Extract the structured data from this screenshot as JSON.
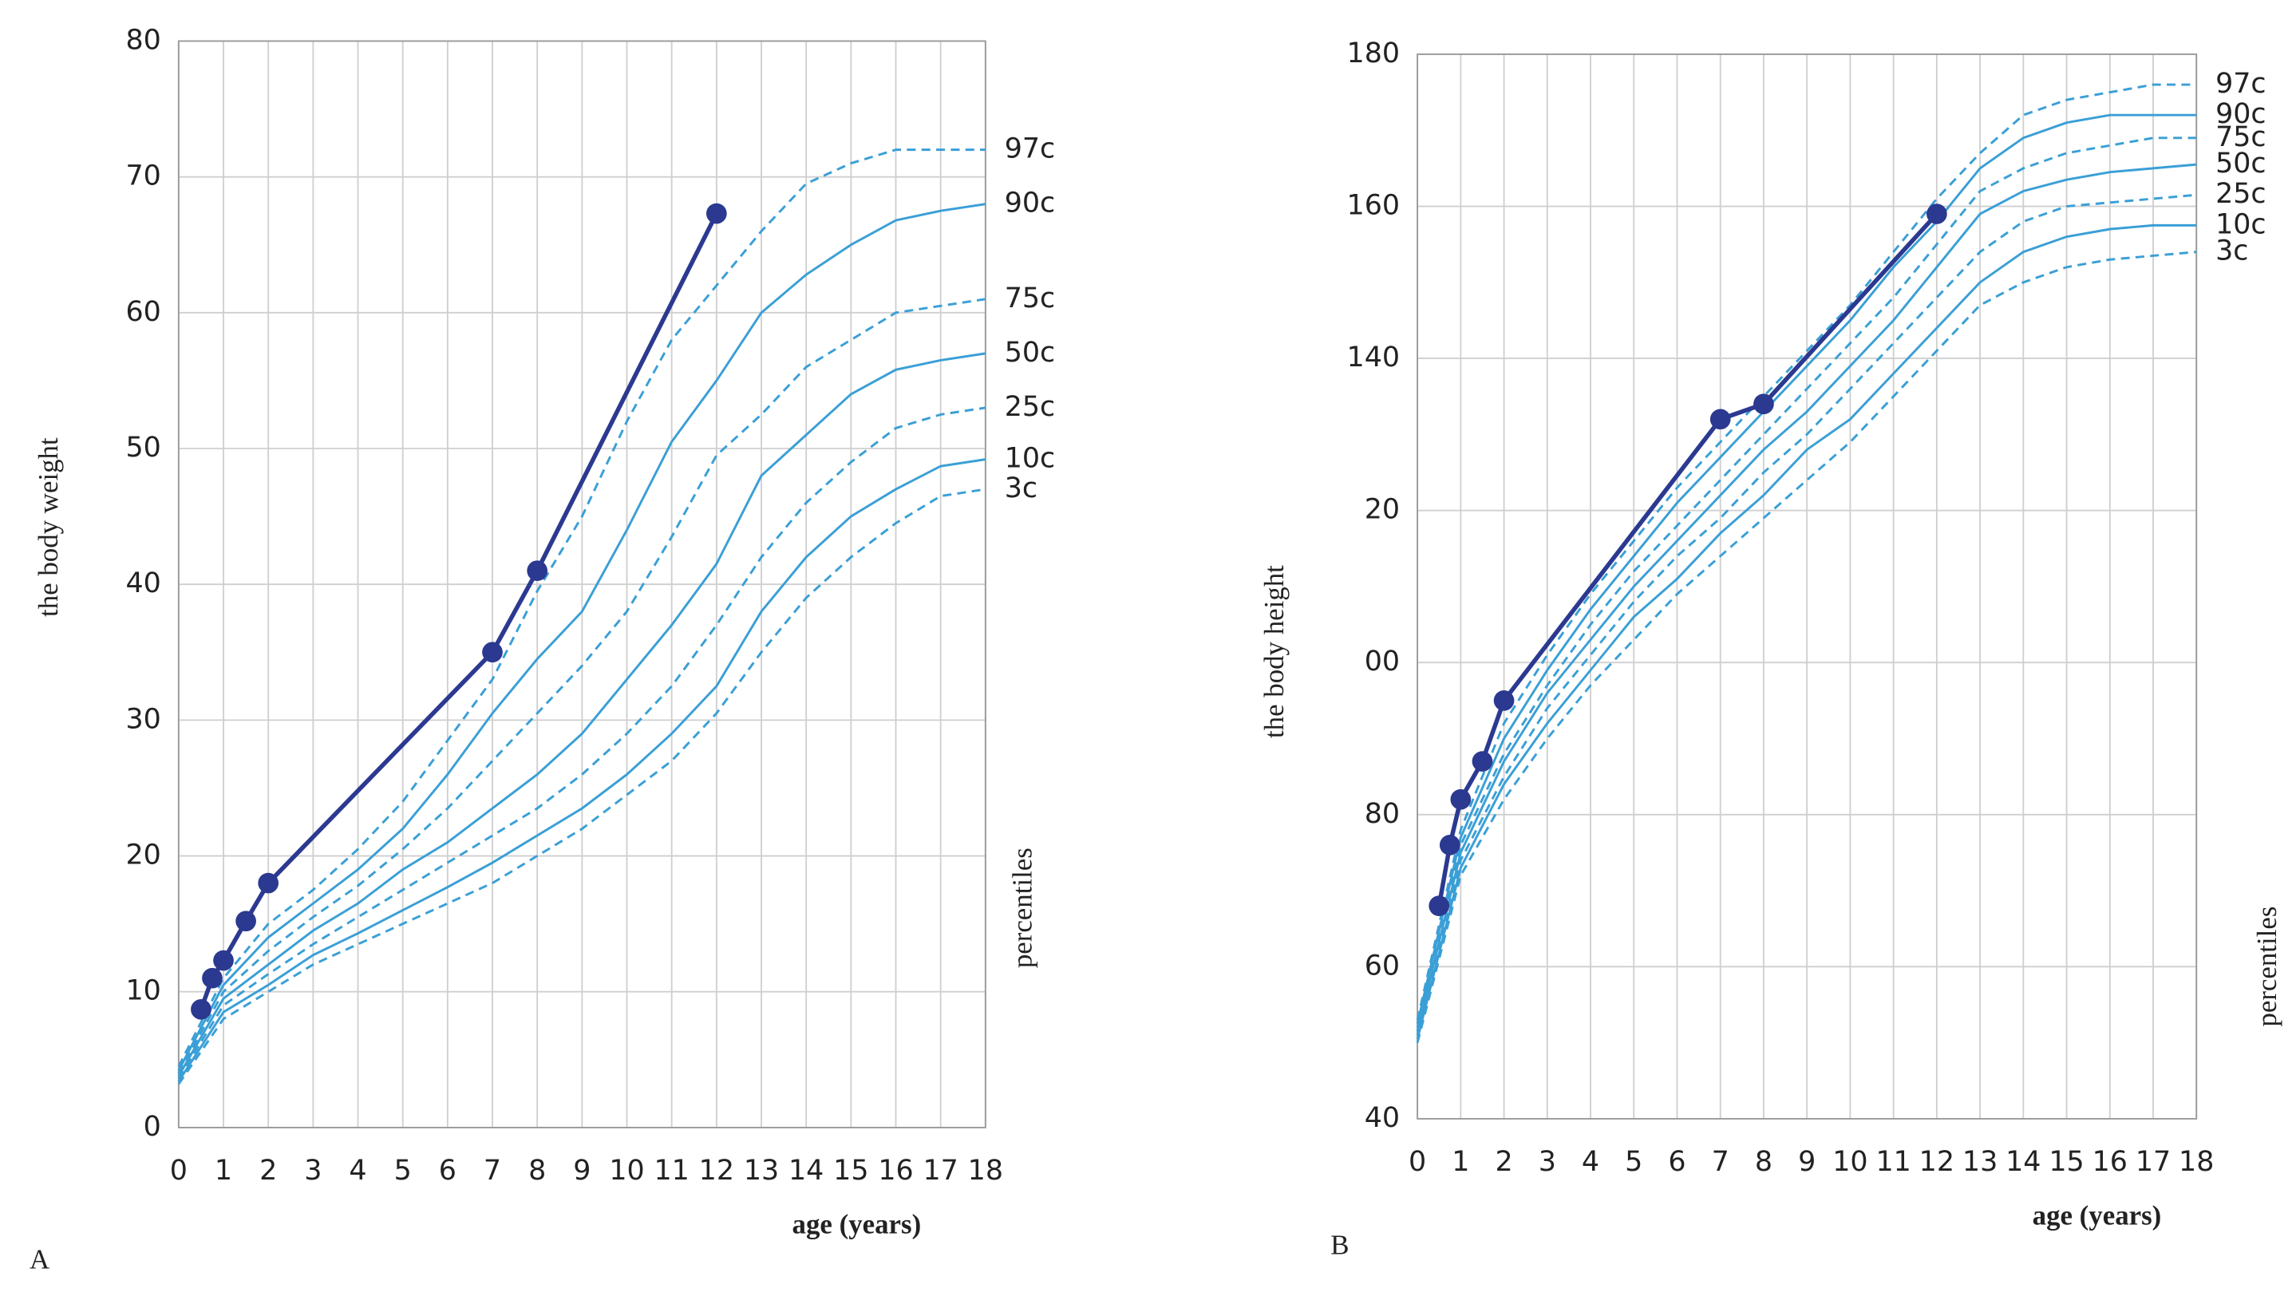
{
  "chart_data": [
    {
      "type": "line",
      "panel_label": "A",
      "x_label": "age (years)",
      "y_label": "the body weight",
      "annotation": "percentiles",
      "xlim": [
        0,
        18
      ],
      "xticks": [
        0,
        1,
        2,
        3,
        4,
        5,
        6,
        7,
        8,
        9,
        10,
        11,
        12,
        13,
        14,
        15,
        16,
        17,
        18
      ],
      "ylim": [
        0,
        80
      ],
      "yticks": [
        0,
        10,
        20,
        30,
        40,
        50,
        60,
        70,
        80
      ],
      "grid": true,
      "x": [
        0,
        1,
        2,
        3,
        4,
        5,
        6,
        7,
        8,
        9,
        10,
        11,
        12,
        13,
        14,
        15,
        16,
        17,
        18
      ],
      "series": [
        {
          "name": "97c",
          "color": "#3a9fd6",
          "dashed": true,
          "values": [
            4.5,
            11,
            15,
            17.5,
            20.5,
            24,
            28.5,
            33,
            39.5,
            45,
            52,
            58,
            62,
            66,
            69.5,
            71,
            72,
            72,
            72
          ]
        },
        {
          "name": "90c",
          "color": "#3a9fd6",
          "dashed": false,
          "values": [
            4.2,
            10.5,
            14,
            16.5,
            19,
            22,
            26,
            30.5,
            34.5,
            38,
            44,
            50.5,
            55,
            60,
            62.8,
            65,
            66.8,
            67.5,
            68
          ]
        },
        {
          "name": "75c",
          "color": "#3a9fd6",
          "dashed": true,
          "values": [
            4,
            10,
            13,
            15.5,
            17.8,
            20.5,
            23.5,
            27,
            30.5,
            34,
            38,
            43.5,
            49.5,
            52.5,
            56,
            58,
            60,
            60.5,
            61
          ]
        },
        {
          "name": "50c",
          "color": "#3a9fd6",
          "dashed": false,
          "values": [
            3.8,
            9.5,
            12,
            14.5,
            16.5,
            19,
            21,
            23.5,
            26,
            29,
            33,
            37,
            41.5,
            48,
            51,
            54,
            55.8,
            56.5,
            57
          ]
        },
        {
          "name": "25c",
          "color": "#3a9fd6",
          "dashed": true,
          "values": [
            3.6,
            9,
            11.3,
            13.5,
            15.5,
            17.5,
            19.5,
            21.5,
            23.5,
            26,
            29,
            32.5,
            37,
            42,
            46,
            49,
            51.5,
            52.5,
            53
          ]
        },
        {
          "name": "10c",
          "color": "#3a9fd6",
          "dashed": false,
          "values": [
            3.4,
            8.5,
            10.5,
            12.7,
            14.3,
            16,
            17.7,
            19.5,
            21.5,
            23.5,
            26,
            29,
            32.5,
            38,
            42,
            45,
            47,
            48.7,
            49.2
          ]
        },
        {
          "name": "3c",
          "color": "#3a9fd6",
          "dashed": true,
          "values": [
            3.2,
            8,
            10,
            12,
            13.5,
            15,
            16.5,
            18,
            20,
            22,
            24.5,
            27,
            30.5,
            35,
            39,
            42,
            44.5,
            46.5,
            47
          ]
        },
        {
          "color": "#2b3990",
          "markers": true,
          "x": [
            0.5,
            0.75,
            1,
            1.5,
            2,
            7,
            8,
            12
          ],
          "values": [
            8.7,
            11,
            12.3,
            15.2,
            18,
            35,
            41,
            67.3
          ]
        }
      ]
    },
    {
      "type": "line",
      "panel_label": "B",
      "x_label": "age (years)",
      "y_label": "the body height",
      "annotation": "percentiles",
      "xlim": [
        0,
        18
      ],
      "xticks": [
        0,
        1,
        2,
        3,
        4,
        5,
        6,
        7,
        8,
        9,
        10,
        11,
        12,
        13,
        14,
        15,
        16,
        17,
        18
      ],
      "ylim": [
        40,
        180
      ],
      "yticks": [
        40,
        60,
        80,
        {
          "value": 100,
          "label": "00"
        },
        {
          "value": 120,
          "label": "20"
        },
        140,
        160,
        180
      ],
      "grid": true,
      "x": [
        0,
        1,
        2,
        3,
        4,
        5,
        6,
        7,
        8,
        9,
        10,
        11,
        12,
        13,
        14,
        15,
        16,
        17,
        18
      ],
      "series": [
        {
          "name": "97c",
          "color": "#3a9fd6",
          "dashed": true,
          "values": [
            53,
            78,
            92,
            101,
            109,
            116,
            123,
            129,
            135,
            141,
            147,
            154,
            161,
            167,
            172,
            174,
            175,
            176,
            176
          ]
        },
        {
          "name": "90c",
          "color": "#3a9fd6",
          "dashed": false,
          "values": [
            52.5,
            77,
            90,
            99,
            107,
            114,
            121,
            127,
            133,
            139,
            145,
            152,
            158,
            165,
            169,
            171,
            172,
            172,
            172
          ]
        },
        {
          "name": "75c",
          "color": "#3a9fd6",
          "dashed": true,
          "values": [
            52,
            76,
            88,
            97,
            105,
            112,
            118,
            124,
            130,
            136,
            142,
            148,
            155,
            162,
            165,
            167,
            168,
            169,
            169
          ]
        },
        {
          "name": "50c",
          "color": "#3a9fd6",
          "dashed": false,
          "values": [
            51.5,
            75,
            87,
            96,
            103,
            110,
            116,
            122,
            128,
            133,
            139,
            145,
            152,
            159,
            162,
            163.5,
            164.5,
            165,
            165.5
          ]
        },
        {
          "name": "25c",
          "color": "#3a9fd6",
          "dashed": true,
          "values": [
            51,
            74,
            85,
            94,
            101,
            108,
            114,
            119,
            125,
            130,
            136,
            142,
            148,
            154,
            158,
            160,
            160.5,
            161,
            161.5
          ]
        },
        {
          "name": "10c",
          "color": "#3a9fd6",
          "dashed": false,
          "values": [
            50.5,
            73,
            84,
            92,
            99,
            106,
            111,
            117,
            122,
            128,
            132,
            138,
            144,
            150,
            154,
            156,
            157,
            157.5,
            157.5
          ]
        },
        {
          "name": "3c",
          "color": "#3a9fd6",
          "dashed": true,
          "values": [
            50,
            72,
            82,
            90,
            97,
            103,
            109,
            114,
            119,
            124,
            129,
            135,
            141,
            147,
            150,
            152,
            153,
            153.5,
            154
          ]
        },
        {
          "color": "#2b3990",
          "markers": true,
          "x": [
            0.5,
            0.75,
            1,
            1.5,
            2,
            7,
            8,
            12
          ],
          "values": [
            68,
            76,
            82,
            87,
            95,
            132,
            134,
            159
          ]
        }
      ]
    }
  ]
}
